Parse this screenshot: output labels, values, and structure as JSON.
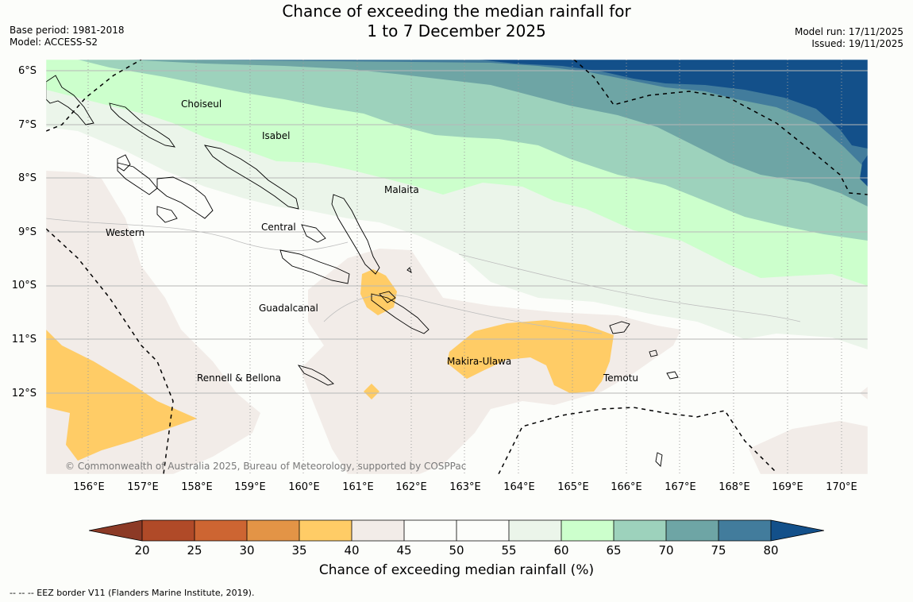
{
  "header": {
    "title_line1": "Chance of exceeding the median rainfall for",
    "title_line2": "1 to 7 December 2025",
    "base_period": "Base period: 1981-2018",
    "model": "Model: ACCESS-S2",
    "model_run": "Model run: 17/11/2025",
    "issued": "Issued: 19/11/2025"
  },
  "map": {
    "lat_labels": [
      "6°S",
      "7°S",
      "8°S",
      "9°S",
      "10°S",
      "11°S",
      "12°S"
    ],
    "lon_labels": [
      "156°E",
      "157°E",
      "158°E",
      "159°E",
      "160°E",
      "161°E",
      "162°E",
      "163°E",
      "164°E",
      "165°E",
      "166°E",
      "167°E",
      "168°E",
      "169°E",
      "170°E"
    ],
    "regions": [
      "Choiseul",
      "Isabel",
      "Malaita",
      "Central",
      "Western",
      "Guadalcanal",
      "Makira-Ulawa",
      "Temotu",
      "Rennell & Bellona"
    ],
    "copyright": "© Commonwealth of Australia 2025, Bureau of Meteorology, supported by COSPPac"
  },
  "colorbar": {
    "ticks": [
      "20",
      "25",
      "30",
      "35",
      "40",
      "45",
      "50",
      "55",
      "60",
      "65",
      "70",
      "75",
      "80"
    ],
    "label": "Chance of exceeding median rainfall (%)",
    "colors": {
      "below_20": "#8c3a26",
      "c20_25": "#b04a28",
      "c25_30": "#cd6532",
      "c30_35": "#e39446",
      "c35_40": "#ffcc66",
      "c40_45": "#f2ece8",
      "c45_50": "#fcfdfa",
      "c50_55": "#fcfdfa",
      "c55_60": "#ebf5ea",
      "c60_65": "#ccffcc",
      "c65_70": "#9dd2bc",
      "c70_75": "#6ea5a5",
      "c75_80": "#427c9c",
      "above_80": "#13508a"
    }
  },
  "footer": {
    "eez_note": "--  --  -- EEZ border V11 (Flanders Marine Institute, 2019)."
  }
}
